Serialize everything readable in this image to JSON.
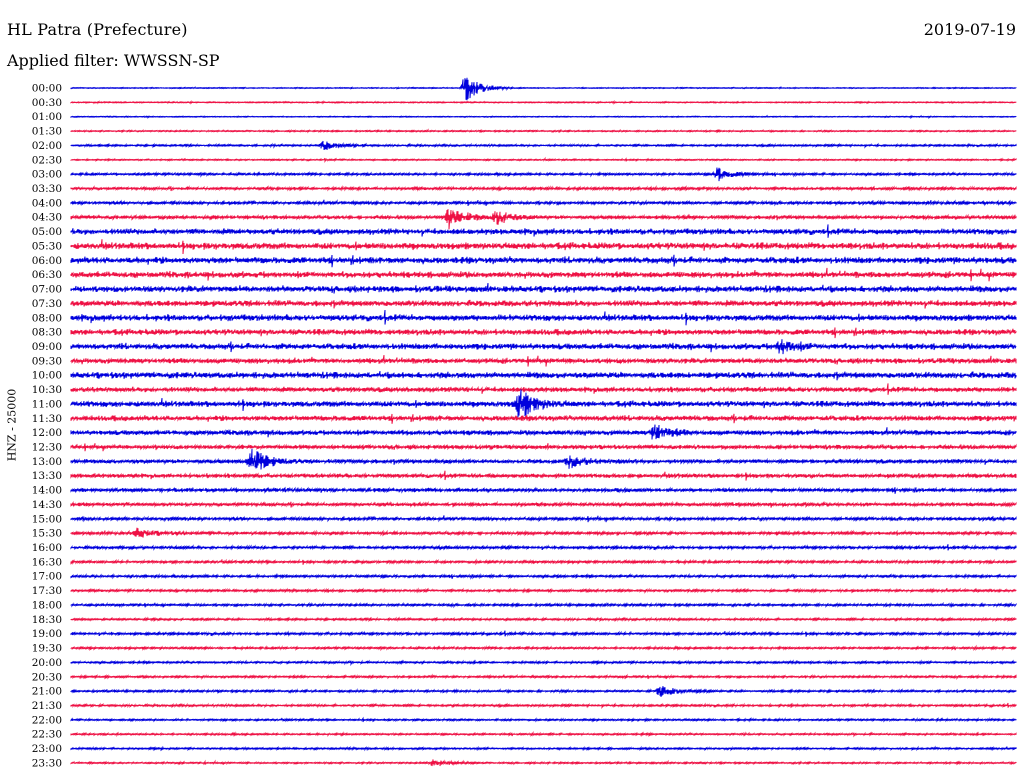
{
  "header": {
    "station": "HL Patra (Prefecture)",
    "date": "2019-07-19",
    "filter_text": "Applied filter: WWSSN-SP"
  },
  "chart_data": {
    "type": "line",
    "ylabel": "HNZ - 25000",
    "colors": [
      "#0000dd",
      "#ee1144"
    ],
    "tick_labels": [
      "00:00",
      "00:30",
      "01:00",
      "01:30",
      "02:00",
      "02:30",
      "03:00",
      "03:30",
      "04:00",
      "04:30",
      "05:00",
      "05:30",
      "06:00",
      "06:30",
      "07:00",
      "07:30",
      "08:00",
      "08:30",
      "09:00",
      "09:30",
      "10:00",
      "10:30",
      "11:00",
      "11:30",
      "12:00",
      "12:30",
      "13:00",
      "13:30",
      "14:00",
      "14:30",
      "15:00",
      "15:30",
      "16:00",
      "16:30",
      "17:00",
      "17:30",
      "18:00",
      "18:30",
      "19:00",
      "19:30",
      "20:00",
      "20:30",
      "21:00",
      "21:30",
      "22:00",
      "22:30",
      "23:00",
      "23:30"
    ],
    "noise_level": [
      0.4,
      0.5,
      0.4,
      0.6,
      0.8,
      0.6,
      1.0,
      1.2,
      1.3,
      1.6,
      2.6,
      3.0,
      3.0,
      2.8,
      2.9,
      2.7,
      2.8,
      2.6,
      2.7,
      2.4,
      2.8,
      2.2,
      2.6,
      2.4,
      2.2,
      1.8,
      1.8,
      1.8,
      1.6,
      1.5,
      1.4,
      1.3,
      1.2,
      1.1,
      1.1,
      1.0,
      1.0,
      0.9,
      1.1,
      0.9,
      0.9,
      0.9,
      0.9,
      0.9,
      0.8,
      0.8,
      0.8,
      0.7
    ],
    "events": [
      {
        "row": 0,
        "minute": 12.5,
        "amp": 14
      },
      {
        "row": 4,
        "minute": 8.0,
        "amp": 5
      },
      {
        "row": 6,
        "minute": 20.5,
        "amp": 7
      },
      {
        "row": 9,
        "minute": 12.0,
        "amp": 11
      },
      {
        "row": 9,
        "minute": 13.5,
        "amp": 7
      },
      {
        "row": 18,
        "minute": 22.5,
        "amp": 7
      },
      {
        "row": 22,
        "minute": 14.2,
        "amp": 16
      },
      {
        "row": 24,
        "minute": 18.5,
        "amp": 9
      },
      {
        "row": 26,
        "minute": 5.7,
        "amp": 14
      },
      {
        "row": 26,
        "minute": 15.8,
        "amp": 6
      },
      {
        "row": 31,
        "minute": 2.1,
        "amp": 5
      },
      {
        "row": 42,
        "minute": 18.7,
        "amp": 6
      },
      {
        "row": 47,
        "minute": 11.5,
        "amp": 4
      }
    ]
  }
}
